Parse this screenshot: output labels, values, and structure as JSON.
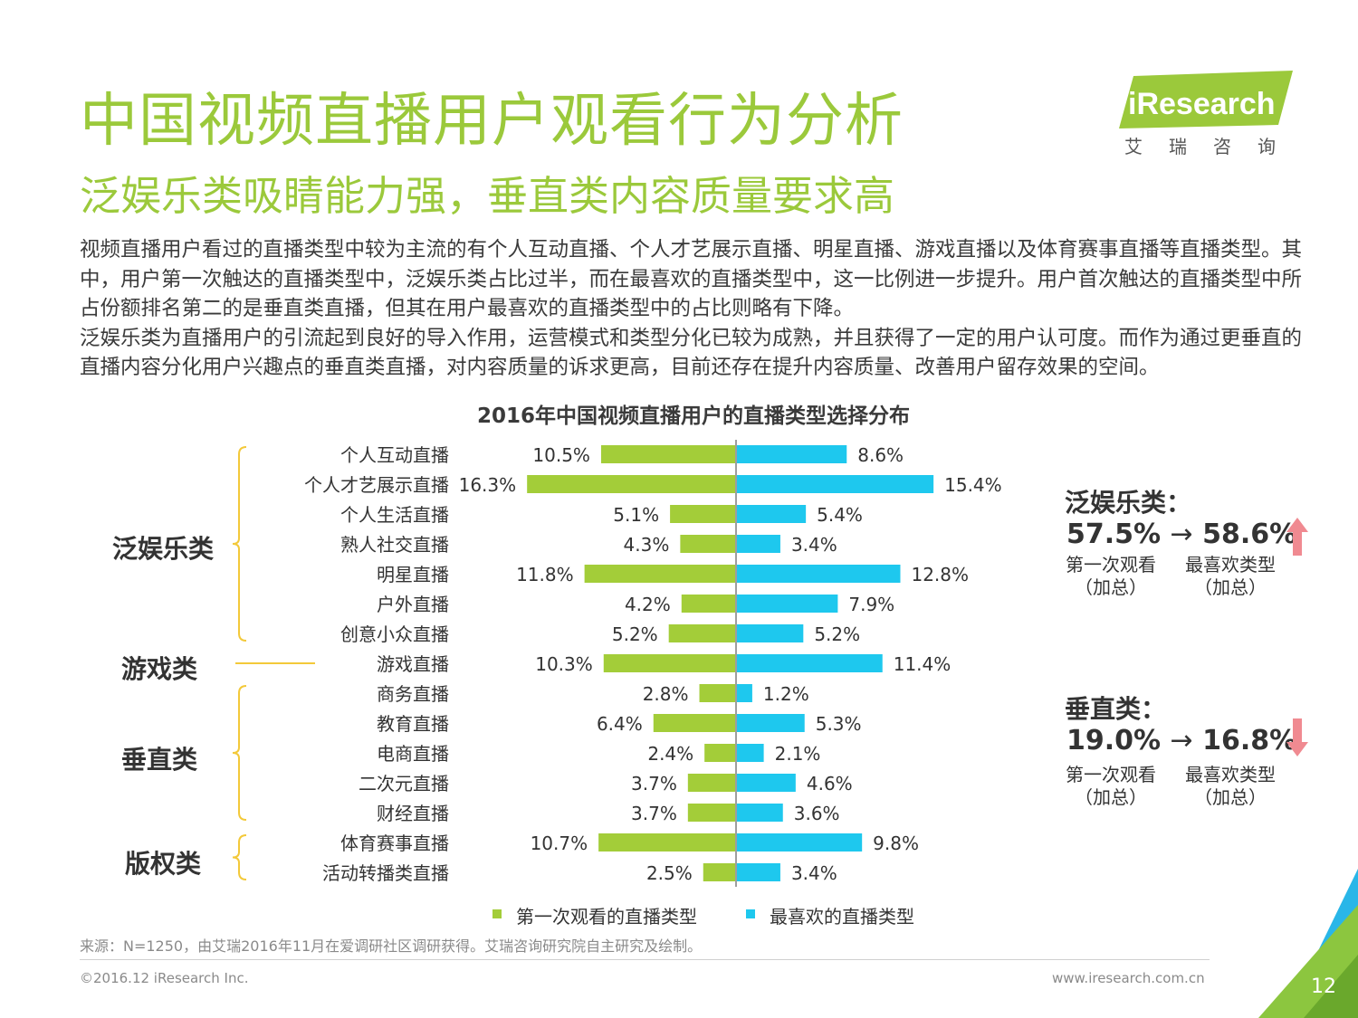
{
  "header": {
    "title": "中国视频直播用户观看行为分析",
    "subtitle": "泛娱乐类吸睛能力强，垂直类内容质量要求高",
    "logo_text": "iResearch",
    "logo_cn": "艾瑞咨询"
  },
  "body_paragraphs": [
    "视频直播用户看过的直播类型中较为主流的有个人互动直播、个人才艺展示直播、明星直播、游戏直播以及体育赛事直播等直播类型。其中，用户第一次触达的直播类型中，泛娱乐类占比过半，而在最喜欢的直播类型中，这一比例进一步提升。用户首次触达的直播类型中所占份额排名第二的是垂直类直播，但其在用户最喜欢的直播类型中的占比则略有下降。",
    "泛娱乐类为直播用户的引流起到良好的导入作用，运营模式和类型分化已较为成熟，并且获得了一定的用户认可度。而作为通过更垂直的直播内容分化用户兴趣点的垂直类直播，对内容质量的诉求更高，目前还存在提升内容质量、改善用户留存效果的空间。"
  ],
  "chart_data": {
    "type": "bar",
    "orientation": "horizontal-butterfly",
    "title": "2016年中国视频直播用户的直播类型选择分布",
    "categories": [
      "个人互动直播",
      "个人才艺展示直播",
      "个人生活直播",
      "熟人社交直播",
      "明星直播",
      "户外直播",
      "创意小众直播",
      "游戏直播",
      "商务直播",
      "教育直播",
      "电商直播",
      "二次元直播",
      "财经直播",
      "体育赛事直播",
      "活动转播类直播"
    ],
    "series": [
      {
        "name": "第一次观看的直播类型",
        "color": "#a3cd39",
        "values": [
          10.5,
          16.3,
          5.1,
          4.3,
          11.8,
          4.2,
          5.2,
          10.3,
          2.8,
          6.4,
          2.4,
          3.7,
          3.7,
          10.7,
          2.5
        ]
      },
      {
        "name": "最喜欢的直播类型",
        "color": "#1ec8ee",
        "values": [
          8.6,
          15.4,
          5.4,
          3.4,
          12.8,
          7.9,
          5.2,
          11.4,
          1.2,
          5.3,
          2.1,
          4.6,
          3.6,
          9.8,
          3.4
        ]
      }
    ],
    "unit": "%",
    "groups": [
      {
        "name": "泛娱乐类",
        "first": 0,
        "last": 6
      },
      {
        "name": "游戏类",
        "first": 7,
        "last": 7
      },
      {
        "name": "垂直类",
        "first": 8,
        "last": 12
      },
      {
        "name": "版权类",
        "first": 13,
        "last": 14
      }
    ],
    "legend": [
      "第一次观看的直播类型",
      "最喜欢的直播类型"
    ],
    "legend_position": "bottom"
  },
  "summary": [
    {
      "title": "泛娱乐类：",
      "from": "57.5%",
      "arrow": "→",
      "to": "58.6%",
      "label_from": "第一次观看",
      "label_to": "最喜欢类型",
      "sub": "（加总）",
      "trend": "up",
      "trend_color": "#f08a91"
    },
    {
      "title": "垂直类：",
      "from": "19.0%",
      "arrow": "→",
      "to": "16.8%",
      "label_from": "第一次观看",
      "label_to": "最喜欢类型",
      "sub": "（加总）",
      "trend": "down",
      "trend_color": "#f08a91"
    }
  ],
  "footer": {
    "source": "来源：N=1250，由艾瑞2016年11月在爱调研社区调研获得。艾瑞咨询研究院自主研究及绘制。",
    "copyright": "©2016.12 iResearch Inc.",
    "website": "www.iresearch.com.cn",
    "page_number": "12"
  },
  "colors": {
    "brand_green": "#9bc93b",
    "bar_green": "#a3cd39",
    "bar_blue": "#1ec8ee",
    "bracket": "#f3c93a",
    "corner_blue": "#29b6e8",
    "corner_green": "#8cc63f"
  }
}
